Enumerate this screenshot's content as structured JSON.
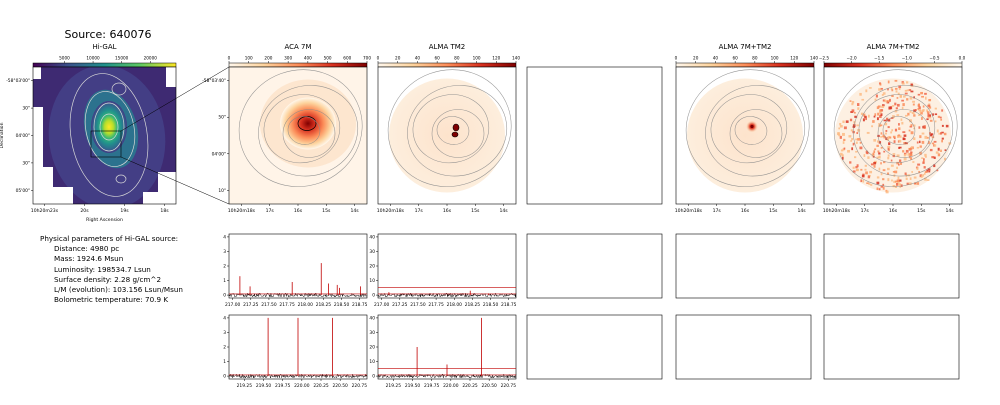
{
  "source_title": "Source: 640076",
  "params": {
    "heading": "Physical parameters of Hi-GAL source:",
    "lines": [
      "Distance: 4980 pc",
      "Mass: 1924.6 Msun",
      "Luminosity: 198534.7 Lsun",
      "Surface density: 2.28 g/cm^2",
      "L/M (evolution): 103.156 Lsun/Msun",
      "Bolometric temperature: 70.9 K"
    ]
  },
  "colors": {
    "viridis": [
      "#440154",
      "#3b528b",
      "#21918c",
      "#5ec962",
      "#fde725"
    ],
    "orrd": [
      "#fff7ec",
      "#fdd49e",
      "#fc8d59",
      "#d7301f",
      "#7f0000"
    ],
    "spectrum_line": "#000000",
    "spectrum_fit": "#c00000",
    "contour": "#8a8a8a",
    "higal_contour": "#d8d8d8"
  },
  "chart_data": [
    {
      "type": "heatmap",
      "title": "Hi-GAL",
      "colorbar_ticks": [
        "5000",
        "10000",
        "15000",
        "20000"
      ],
      "xlabel": "Right Ascension",
      "ylabel": "Declination",
      "x_ticks": [
        "10h20m23s",
        "20s",
        "19s",
        "18s"
      ],
      "y_ticks": [
        "-58°03'00\"",
        "30\"",
        "04'00\"",
        "30\"",
        "05'00\""
      ]
    },
    {
      "type": "heatmap",
      "title": "ACA 7M",
      "colorbar_ticks": [
        "0",
        "100",
        "200",
        "300",
        "400",
        "500",
        "600",
        "700"
      ],
      "x_ticks": [
        "10h20m18s",
        "17s",
        "16s",
        "15s",
        "14s"
      ],
      "y_ticks": [
        "-58°03'40\"",
        "50\"",
        "04'00\"",
        "10\""
      ]
    },
    {
      "type": "heatmap",
      "title": "ALMA TM2",
      "colorbar_ticks": [
        "0",
        "20",
        "40",
        "60",
        "80",
        "100",
        "120",
        "140"
      ],
      "x_ticks": [
        "10h20m18s",
        "17s",
        "16s",
        "15s",
        "14s"
      ]
    },
    {
      "type": "heatmap",
      "title": "ALMA 7M+TM2",
      "colorbar_ticks": [
        "0",
        "20",
        "40",
        "60",
        "80",
        "100",
        "120",
        "140"
      ],
      "x_ticks": [
        "10h20m18s",
        "17s",
        "16s",
        "15s",
        "14s"
      ]
    },
    {
      "type": "heatmap",
      "title": "ALMA 7M+TM2",
      "colorbar_ticks": [
        "−2.5",
        "−2.0",
        "−1.5",
        "−1.0",
        "−0.5",
        "0.0"
      ],
      "x_ticks": [
        "10h20m18s",
        "17s",
        "16s",
        "15s",
        "14s"
      ]
    },
    {
      "type": "line",
      "title": "",
      "xlim": [
        216.95,
        218.85
      ],
      "ylim": [
        -0.2,
        4.2
      ],
      "x_ticks": [
        "217.00",
        "217.25",
        "217.50",
        "217.75",
        "218.00",
        "218.25",
        "218.50",
        "218.75"
      ],
      "y_ticks": [
        "0",
        "1",
        "2",
        "3",
        "4"
      ],
      "peaks": [
        [
          217.1,
          1.3
        ],
        [
          217.24,
          0.6
        ],
        [
          217.82,
          0.9
        ],
        [
          218.22,
          2.2
        ],
        [
          218.32,
          0.8
        ],
        [
          218.44,
          0.7
        ],
        [
          218.47,
          0.5
        ],
        [
          218.76,
          0.6
        ]
      ]
    },
    {
      "type": "line",
      "title": "",
      "xlim": [
        216.95,
        218.85
      ],
      "ylim": [
        -2,
        42
      ],
      "x_ticks": [
        "217.00",
        "217.25",
        "217.50",
        "217.75",
        "218.00",
        "218.25",
        "218.50",
        "218.75"
      ],
      "y_ticks": [
        "0",
        "10",
        "20",
        "30",
        "40"
      ],
      "peaks": [
        [
          217.1,
          2
        ],
        [
          218.22,
          3
        ],
        [
          218.47,
          1
        ]
      ]
    },
    {
      "type": "line",
      "title": "",
      "xlim": [
        219.05,
        220.85
      ],
      "ylim": [
        -0.2,
        4.2
      ],
      "x_ticks": [
        "219.25",
        "219.50",
        "219.75",
        "220.00",
        "220.25",
        "220.50",
        "220.75"
      ],
      "y_ticks": [
        "0",
        "1",
        "2",
        "3",
        "4"
      ],
      "peaks": [
        [
          219.56,
          4.0
        ],
        [
          219.95,
          4.0
        ],
        [
          220.4,
          4.0
        ]
      ]
    },
    {
      "type": "line",
      "title": "",
      "xlim": [
        219.05,
        220.85
      ],
      "ylim": [
        -2,
        42
      ],
      "x_ticks": [
        "219.25",
        "219.50",
        "219.75",
        "220.00",
        "220.25",
        "220.50",
        "220.75"
      ],
      "y_ticks": [
        "0",
        "10",
        "20",
        "30",
        "40"
      ],
      "peaks": [
        [
          219.56,
          20
        ],
        [
          219.95,
          8
        ],
        [
          220.4,
          40
        ]
      ]
    }
  ]
}
